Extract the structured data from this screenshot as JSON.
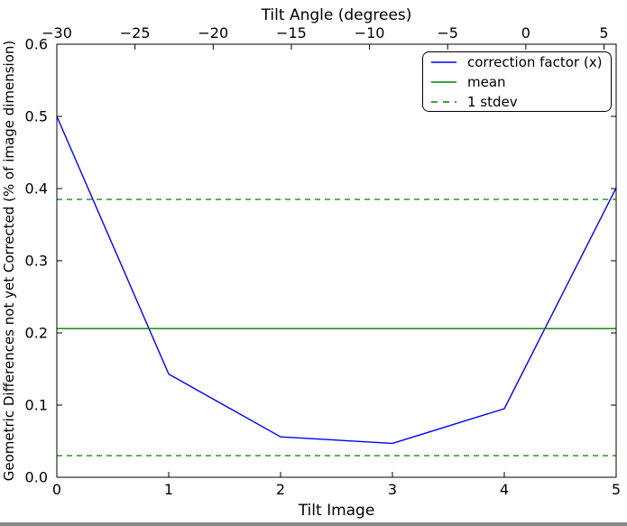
{
  "figure": {
    "background": "#ffffff",
    "plot_background": "#ffffff",
    "border_color": "#000000",
    "text_color": "#000000"
  },
  "chart_data": {
    "type": "line",
    "title": "",
    "grid": false,
    "top_axis": {
      "label": "Tilt Angle (degrees)",
      "tick_labels": [
        "−30",
        "−25",
        "−20",
        "−15",
        "−10",
        "−5",
        "0",
        "5"
      ],
      "tick_values": [
        -30,
        -25,
        -20,
        -15,
        -10,
        -5,
        0,
        5
      ],
      "range": [
        -30,
        5.78
      ]
    },
    "x_axis": {
      "label": "Tilt Image",
      "tick_labels": [
        "0",
        "1",
        "2",
        "3",
        "4",
        "5"
      ],
      "tick_values": [
        0,
        1,
        2,
        3,
        4,
        5
      ],
      "range": [
        0,
        5
      ]
    },
    "y_axis": {
      "label": "Geometric Differences not yet Corrected (% of image dimension)",
      "tick_labels": [
        "0.0",
        "0.1",
        "0.2",
        "0.3",
        "0.4",
        "0.5",
        "0.6"
      ],
      "tick_values": [
        0,
        0.1,
        0.2,
        0.3,
        0.4,
        0.5,
        0.6
      ],
      "range": [
        0,
        0.6
      ]
    },
    "series": [
      {
        "name": "correction factor (x)",
        "kind": "line",
        "color": "#0000ff",
        "style": "solid",
        "x": [
          0,
          1,
          2,
          3,
          4,
          5
        ],
        "y": [
          0.5,
          0.143,
          0.056,
          0.047,
          0.095,
          0.401
        ]
      },
      {
        "name": "mean",
        "kind": "hline",
        "color": "#008000",
        "style": "solid",
        "y": [
          0.206
        ]
      },
      {
        "name": "1 stdev",
        "kind": "hline",
        "color": "#008000",
        "style": "dashed",
        "y": [
          0.385,
          0.03
        ]
      }
    ],
    "legend": {
      "position": "upper right",
      "items": [
        {
          "label": "correction factor (x)",
          "color": "#0000ff",
          "style": "solid"
        },
        {
          "label": "mean",
          "color": "#008000",
          "style": "solid"
        },
        {
          "label": "1 stdev",
          "color": "#008000",
          "style": "dashed"
        }
      ]
    }
  }
}
